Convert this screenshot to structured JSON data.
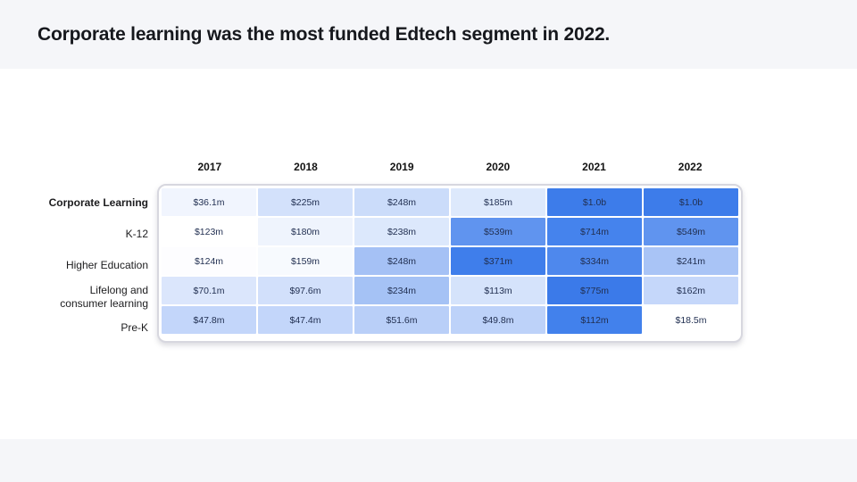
{
  "slide": {
    "title": "Corporate learning was the most funded Edtech segment in 2022."
  },
  "colors": {
    "band": "#f5f6f9",
    "table_border": "#d7d7df",
    "cell_text": "#223052",
    "label_text": "#1c1c1e",
    "accent_high": "#3b7ae9",
    "accent_low": "#ffffff"
  },
  "chart_data": {
    "type": "heatmap",
    "title": "Corporate learning was the most funded Edtech segment in 2022.",
    "categories": [
      "2017",
      "2018",
      "2019",
      "2020",
      "2021",
      "2022"
    ],
    "unit": "USD (m = millions, b = billions)",
    "legend_position": "none",
    "grid": false,
    "rows": [
      {
        "label": "Corporate Learning",
        "bold": true,
        "values_musd": [
          36.1,
          225,
          248,
          185,
          1000,
          1000
        ],
        "display": [
          "$36.1m",
          "$225m",
          "$248m",
          "$185m",
          "$1.0b",
          "$1.0b"
        ],
        "cell_colors": [
          "#f1f5fe",
          "#d3e1fb",
          "#cbdcfa",
          "#dde9fc",
          "#3d7cea",
          "#3d7cea"
        ]
      },
      {
        "label": "K-12",
        "bold": false,
        "values_musd": [
          123,
          180,
          238,
          539,
          714,
          549
        ],
        "display": [
          "$123m",
          "$180m",
          "$238m",
          "$539m",
          "$714m",
          "$549m"
        ],
        "cell_colors": [
          "#ffffff",
          "#eff4fd",
          "#dce8fc",
          "#6094ef",
          "#4583ed",
          "#6094ef"
        ]
      },
      {
        "label": "Higher Education",
        "bold": false,
        "values_musd": [
          124,
          159,
          248,
          371,
          334,
          241
        ],
        "display": [
          "$124m",
          "$159m",
          "$248m",
          "$371m",
          "$334m",
          "$241m"
        ],
        "cell_colors": [
          "#fdfdff",
          "#f7fafe",
          "#a5c1f5",
          "#3f7eeb",
          "#4e88ed",
          "#a9c4f6"
        ]
      },
      {
        "label": "Lifelong and consumer learning",
        "bold": false,
        "values_musd": [
          70.1,
          97.6,
          234,
          113,
          775,
          162
        ],
        "display": [
          "$70.1m",
          "$97.6m",
          "$234m",
          "$113m",
          "$775m",
          "$162m"
        ],
        "cell_colors": [
          "#dbe6fc",
          "#d2e0fb",
          "#a5c2f5",
          "#d5e3fb",
          "#3b7ae9",
          "#c5d7fa"
        ]
      },
      {
        "label": "Pre-K",
        "bold": false,
        "values_musd": [
          47.8,
          47.4,
          51.6,
          49.8,
          112,
          18.5
        ],
        "display": [
          "$47.8m",
          "$47.4m",
          "$51.6m",
          "$49.8m",
          "$112m",
          "$18.5m"
        ],
        "cell_colors": [
          "#c3d6fa",
          "#c3d6fa",
          "#b9cff8",
          "#bdd2f9",
          "#4281ec",
          "#ffffff"
        ]
      }
    ]
  }
}
